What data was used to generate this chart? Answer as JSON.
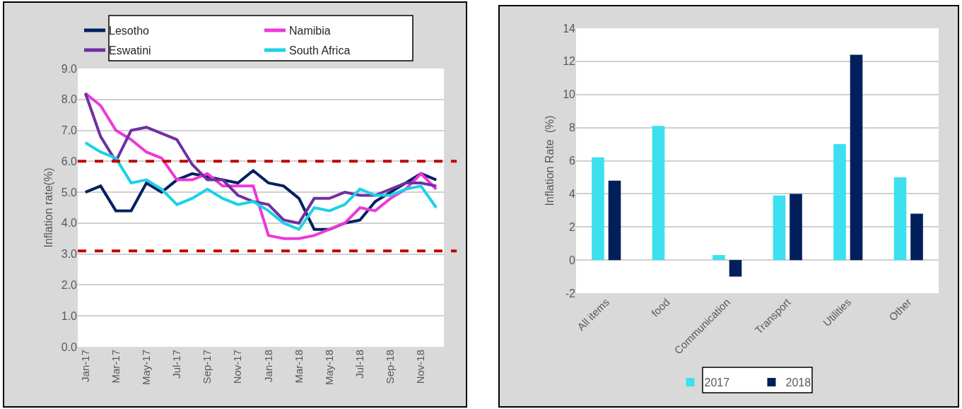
{
  "chart_data": [
    {
      "type": "line",
      "ylabel": "Inflation rate(%)",
      "categories": [
        "Jan-17",
        null,
        "Mar-17",
        null,
        "May-17",
        null,
        "Jul-17",
        null,
        "Sep-17",
        null,
        "Nov-17",
        null,
        "Jan-18",
        null,
        "Mar-18",
        null,
        "May-18",
        null,
        "Jul-18",
        null,
        "Sep-18",
        null,
        "Nov-18",
        null
      ],
      "series": [
        {
          "name": "Lesotho",
          "color": "#002060",
          "values": [
            5.0,
            5.2,
            4.4,
            4.4,
            5.3,
            5.0,
            5.4,
            5.6,
            5.5,
            5.4,
            5.3,
            5.7,
            5.3,
            5.2,
            4.8,
            3.8,
            3.8,
            4.0,
            4.1,
            4.7,
            5.0,
            5.3,
            5.6,
            5.4
          ]
        },
        {
          "name": "Namibia",
          "color": "#ee38d8",
          "values": [
            8.2,
            7.8,
            7.0,
            6.7,
            6.3,
            6.1,
            5.4,
            5.4,
            5.6,
            5.2,
            5.2,
            5.2,
            3.6,
            3.5,
            3.5,
            3.6,
            3.8,
            4.0,
            4.5,
            4.4,
            4.8,
            5.1,
            5.6,
            5.1
          ]
        },
        {
          "name": "Eswatini",
          "color": "#7030a0",
          "values": [
            8.2,
            6.8,
            6.0,
            7.0,
            7.1,
            6.9,
            6.7,
            5.9,
            5.4,
            5.4,
            4.9,
            4.7,
            4.6,
            4.1,
            4.0,
            4.8,
            4.8,
            5.0,
            4.9,
            4.9,
            5.1,
            5.3,
            5.3,
            5.2
          ]
        },
        {
          "name": "South Africa",
          "color": "#1cd2e6",
          "values": [
            6.6,
            6.3,
            6.1,
            5.3,
            5.4,
            5.1,
            4.6,
            4.8,
            5.1,
            4.8,
            4.6,
            4.7,
            4.4,
            4.0,
            3.8,
            4.5,
            4.4,
            4.6,
            5.1,
            4.9,
            4.9,
            5.1,
            5.2,
            4.5
          ]
        }
      ],
      "ylim": [
        0,
        9
      ],
      "yticks": [
        {
          "value": 0,
          "label": "0.0"
        },
        {
          "value": 1,
          "label": "1.0"
        },
        {
          "value": 2,
          "label": "2.0"
        },
        {
          "value": 3,
          "label": "3.0"
        },
        {
          "value": 4,
          "label": "4.0"
        },
        {
          "value": 5,
          "label": "5.0"
        },
        {
          "value": 6,
          "label": "6.0"
        },
        {
          "value": 7,
          "label": "7.0"
        },
        {
          "value": 8,
          "label": "8.0"
        },
        {
          "value": 9,
          "label": "9.0"
        }
      ],
      "grid": "y",
      "legend": "top",
      "ref_lines": [
        {
          "axis": "y",
          "value": 6.0,
          "color": "#c00000",
          "line_style": "dashed"
        },
        {
          "axis": "y",
          "value": 3.1,
          "color": "#c00000",
          "line_style": "dashed"
        }
      ]
    },
    {
      "type": "bar",
      "ylabel": "Inflation Rate  (%)",
      "categories": [
        "All items",
        "food",
        "Communication",
        "Transport",
        "Utilities",
        "Other"
      ],
      "series": [
        {
          "name": "2017",
          "color": "#3de0ef",
          "values": [
            6.2,
            8.1,
            0.3,
            3.9,
            7.0,
            5.0
          ]
        },
        {
          "name": "2018",
          "color": "#001f5b",
          "values": [
            4.8,
            null,
            -1.0,
            4.0,
            12.4,
            2.8
          ]
        }
      ],
      "ylim": [
        -2,
        14
      ],
      "yticks": [
        -2,
        0,
        2,
        4,
        6,
        8,
        10,
        12,
        14
      ],
      "grid": "y",
      "legend": "bottom"
    }
  ]
}
